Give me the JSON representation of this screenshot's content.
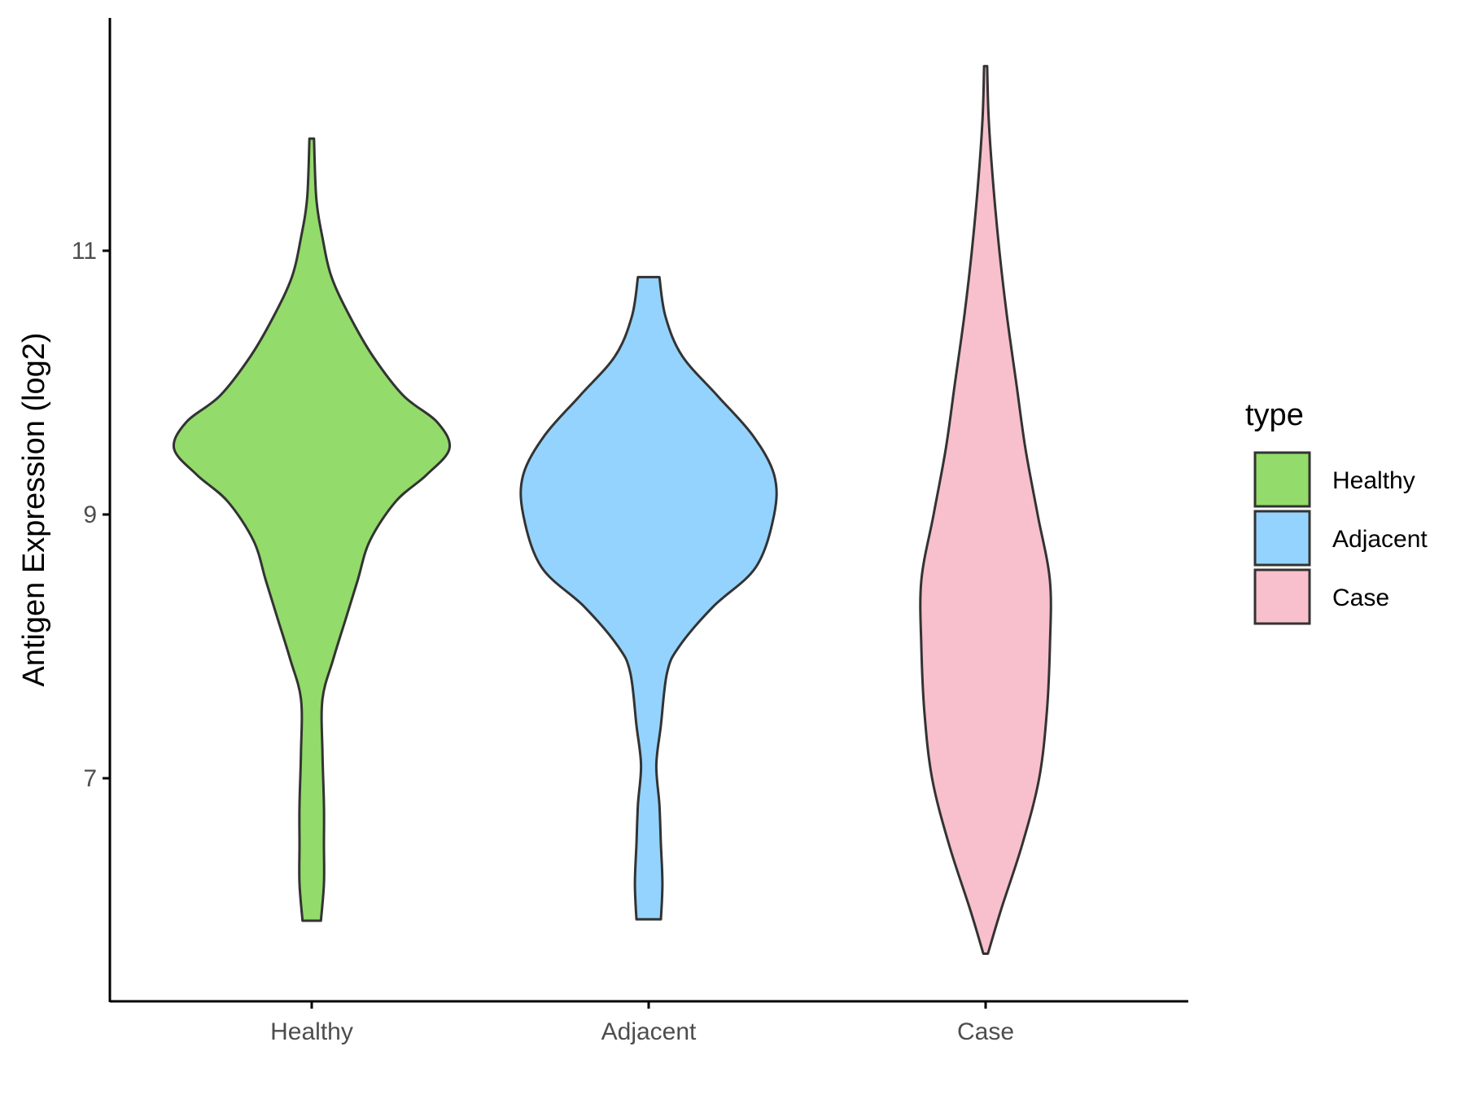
{
  "chart_data": {
    "type": "violin",
    "title": "",
    "xlabel": "",
    "ylabel": "Antigen Expression (log2)",
    "ylim": [
      5.4,
      12.8
    ],
    "yticks": [
      7,
      9,
      11
    ],
    "categories": [
      "Healthy",
      "Adjacent",
      "Case"
    ],
    "legend": {
      "title": "type",
      "placement": "right",
      "entries": [
        "Healthy",
        "Adjacent",
        "Case"
      ]
    },
    "grid": false,
    "series": [
      {
        "category": "Healthy",
        "color": "#93DB6A",
        "density": [
          [
            5.92,
            0.06
          ],
          [
            6.2,
            0.08
          ],
          [
            6.5,
            0.08
          ],
          [
            6.8,
            0.08
          ],
          [
            7.2,
            0.07
          ],
          [
            7.6,
            0.07
          ],
          [
            7.9,
            0.14
          ],
          [
            8.2,
            0.22
          ],
          [
            8.5,
            0.3
          ],
          [
            8.8,
            0.38
          ],
          [
            9.1,
            0.55
          ],
          [
            9.3,
            0.75
          ],
          [
            9.5,
            0.9
          ],
          [
            9.7,
            0.82
          ],
          [
            9.9,
            0.6
          ],
          [
            10.2,
            0.4
          ],
          [
            10.5,
            0.25
          ],
          [
            10.8,
            0.13
          ],
          [
            11.1,
            0.07
          ],
          [
            11.4,
            0.03
          ],
          [
            11.85,
            0.015
          ]
        ]
      },
      {
        "category": "Adjacent",
        "color": "#94D3FE",
        "density": [
          [
            5.93,
            0.08
          ],
          [
            6.2,
            0.09
          ],
          [
            6.5,
            0.08
          ],
          [
            6.8,
            0.07
          ],
          [
            7.1,
            0.05
          ],
          [
            7.4,
            0.08
          ],
          [
            7.8,
            0.12
          ],
          [
            8.0,
            0.2
          ],
          [
            8.3,
            0.42
          ],
          [
            8.6,
            0.7
          ],
          [
            9.0,
            0.82
          ],
          [
            9.3,
            0.82
          ],
          [
            9.6,
            0.68
          ],
          [
            9.9,
            0.45
          ],
          [
            10.2,
            0.22
          ],
          [
            10.5,
            0.11
          ],
          [
            10.8,
            0.07
          ]
        ]
      },
      {
        "category": "Case",
        "color": "#F7C0CC",
        "density": [
          [
            5.67,
            0.015
          ],
          [
            6.0,
            0.1
          ],
          [
            6.5,
            0.24
          ],
          [
            7.0,
            0.35
          ],
          [
            7.5,
            0.4
          ],
          [
            8.0,
            0.42
          ],
          [
            8.5,
            0.42
          ],
          [
            9.0,
            0.34
          ],
          [
            9.5,
            0.26
          ],
          [
            10.0,
            0.2
          ],
          [
            10.5,
            0.14
          ],
          [
            11.0,
            0.09
          ],
          [
            11.5,
            0.05
          ],
          [
            12.0,
            0.02
          ],
          [
            12.4,
            0.01
          ]
        ]
      }
    ]
  }
}
